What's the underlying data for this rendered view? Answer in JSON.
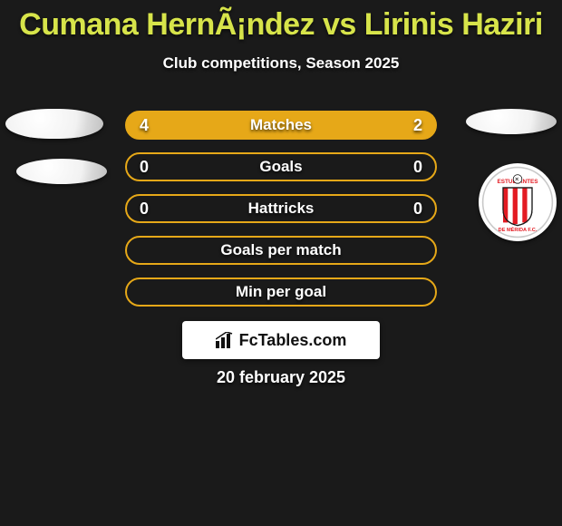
{
  "background_color": "#1a1a1a",
  "title": {
    "text": "Cumana HernÃ¡ndez vs Lirinis Haziri",
    "color": "#d7e44a",
    "fontsize": 34,
    "fontweight": 800
  },
  "subtitle": {
    "text": "Club competitions, Season 2025",
    "color": "#ffffff",
    "fontsize": 17,
    "fontweight": 700
  },
  "date": {
    "text": "20 february 2025",
    "color": "#ffffff",
    "fontsize": 18,
    "fontweight": 700
  },
  "footer_card": {
    "label": "FcTables.com",
    "icon": "bar-chart-icon",
    "background": "#ffffff",
    "text_color": "#111111"
  },
  "bars": [
    {
      "label": "Matches",
      "left_value": "4",
      "right_value": "2",
      "left_pct": 67,
      "right_pct": 33,
      "fill_color": "#e6a818",
      "border_color": "#e6a818",
      "bg_color": "#e6a818"
    },
    {
      "label": "Goals",
      "left_value": "0",
      "right_value": "0",
      "left_pct": 0,
      "right_pct": 0,
      "fill_color": "#e6a818",
      "border_color": "#e6a818",
      "bg_color": "transparent"
    },
    {
      "label": "Hattricks",
      "left_value": "0",
      "right_value": "0",
      "left_pct": 0,
      "right_pct": 0,
      "fill_color": "#e6a818",
      "border_color": "#e6a818",
      "bg_color": "transparent"
    },
    {
      "label": "Goals per match",
      "left_value": "",
      "right_value": "",
      "left_pct": 0,
      "right_pct": 0,
      "fill_color": "#e6a818",
      "border_color": "#e6a818",
      "bg_color": "transparent"
    },
    {
      "label": "Min per goal",
      "left_value": "",
      "right_value": "",
      "left_pct": 0,
      "right_pct": 0,
      "fill_color": "#e6a818",
      "border_color": "#e6a818",
      "bg_color": "transparent"
    }
  ],
  "left_avatars": [
    {
      "shape": "ellipse",
      "w": 108,
      "h": 33
    },
    {
      "shape": "ellipse",
      "w": 100,
      "h": 28
    }
  ],
  "right_avatars": [
    {
      "shape": "ellipse",
      "w": 100,
      "h": 28
    },
    {
      "shape": "club-badge",
      "w": 86,
      "h": 86,
      "club": "Estudiantes de Mérida FC"
    }
  ],
  "club_badge_colors": {
    "stripe1": "#e31b23",
    "stripe2": "#ffffff",
    "outline": "#1a1a1a",
    "text": "#e31b23"
  }
}
